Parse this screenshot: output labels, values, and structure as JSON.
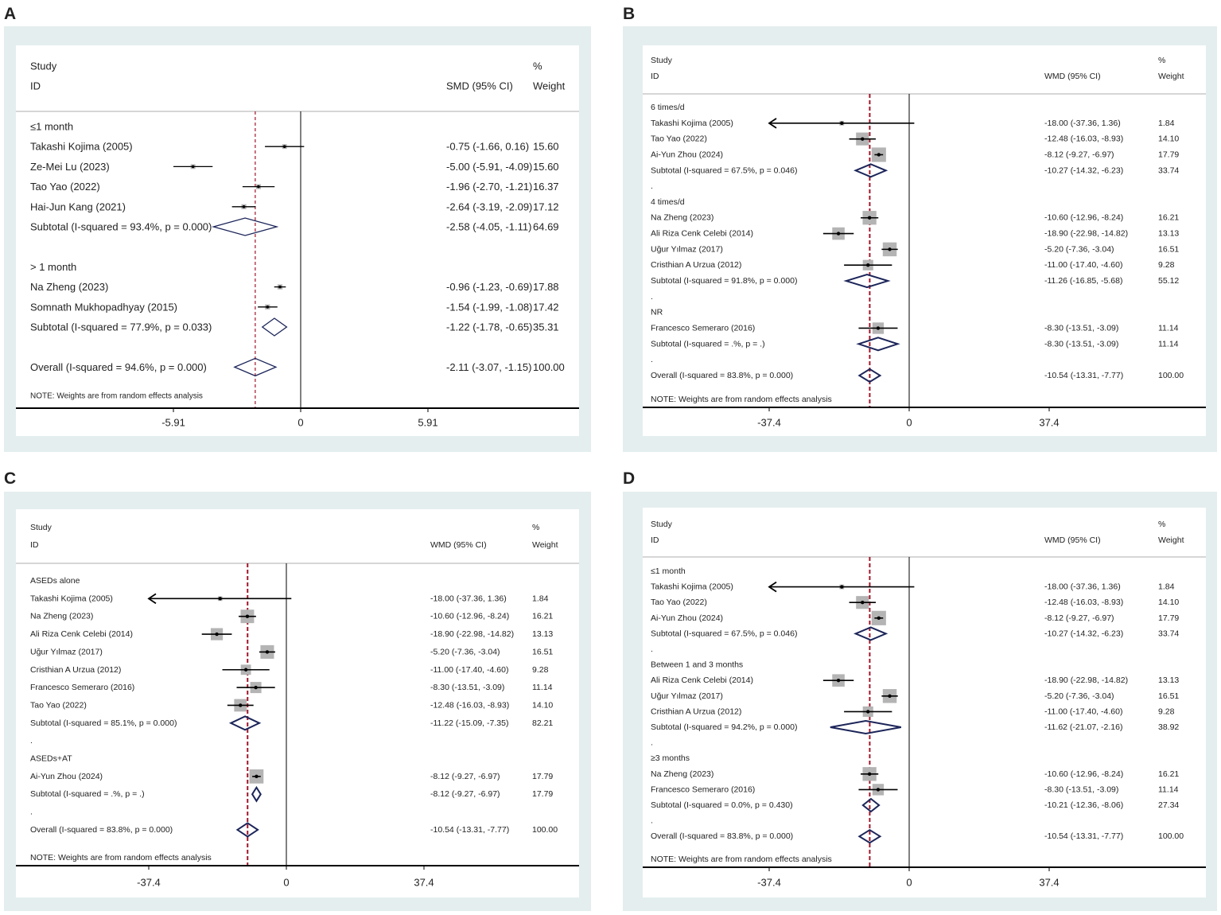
{
  "chart_data": [
    {
      "type": "forest",
      "panel_label": "A",
      "header": {
        "study": "Study",
        "id": "ID",
        "measure": "SMD (95% CI)",
        "pct": "%",
        "weight": "Weight"
      },
      "axis_ticks": [
        {
          "value": -5.91,
          "label": "-5.91"
        },
        {
          "value": 0,
          "label": "0"
        },
        {
          "value": 5.91,
          "label": "5.91"
        }
      ],
      "overall_estimate": -2.11,
      "note": "NOTE: Weights are from random effects analysis",
      "rows": [
        {
          "type": "group",
          "label": "≤1 month"
        },
        {
          "type": "study",
          "label": "Takashi Kojima (2005)",
          "est": -0.75,
          "lo": -1.66,
          "hi": 0.16,
          "ci_text": "-0.75 (-1.66, 0.16)",
          "weight": "15.60"
        },
        {
          "type": "study",
          "label": "Ze-Mei Lu (2023)",
          "est": -5.0,
          "lo": -5.91,
          "hi": -4.09,
          "ci_text": "-5.00 (-5.91, -4.09)",
          "weight": "15.60"
        },
        {
          "type": "study",
          "label": "Tao Yao (2022)",
          "est": -1.96,
          "lo": -2.7,
          "hi": -1.21,
          "ci_text": "-1.96 (-2.70, -1.21)",
          "weight": "16.37"
        },
        {
          "type": "study",
          "label": "Hai-Jun Kang (2021)",
          "est": -2.64,
          "lo": -3.19,
          "hi": -2.09,
          "ci_text": "-2.64 (-3.19, -2.09)",
          "weight": "17.12"
        },
        {
          "type": "subtotal",
          "label": "Subtotal  (I-squared = 93.4%, p = 0.000)",
          "est": -2.58,
          "lo": -4.05,
          "hi": -1.11,
          "ci_text": "-2.58 (-4.05, -1.11)",
          "weight": "64.69"
        },
        {
          "type": "blank",
          "label": ""
        },
        {
          "type": "group",
          "label": "> 1 month"
        },
        {
          "type": "study",
          "label": "Na Zheng (2023)",
          "est": -0.96,
          "lo": -1.23,
          "hi": -0.69,
          "ci_text": "-0.96 (-1.23, -0.69)",
          "weight": "17.88"
        },
        {
          "type": "study",
          "label": "Somnath Mukhopadhyay (2015)",
          "est": -1.54,
          "lo": -1.99,
          "hi": -1.08,
          "ci_text": "-1.54 (-1.99, -1.08)",
          "weight": "17.42"
        },
        {
          "type": "subtotal",
          "label": "Subtotal  (I-squared = 77.9%, p = 0.033)",
          "est": -1.22,
          "lo": -1.78,
          "hi": -0.65,
          "ci_text": "-1.22 (-1.78, -0.65)",
          "weight": "35.31"
        },
        {
          "type": "blank",
          "label": ""
        },
        {
          "type": "overall",
          "label": "Overall  (I-squared = 94.6%, p = 0.000)",
          "est": -2.11,
          "lo": -3.07,
          "hi": -1.15,
          "ci_text": "-2.11 (-3.07, -1.15)",
          "weight": "100.00"
        }
      ]
    },
    {
      "type": "forest",
      "panel_label": "B",
      "header": {
        "study": "Study",
        "id": "ID",
        "measure": "WMD (95% CI)",
        "pct": "%",
        "weight": "Weight"
      },
      "axis_ticks": [
        {
          "value": -37.4,
          "label": "-37.4"
        },
        {
          "value": 0,
          "label": "0"
        },
        {
          "value": 37.4,
          "label": "37.4"
        }
      ],
      "overall_estimate": -10.54,
      "note": "NOTE: Weights are from random effects analysis",
      "rows": [
        {
          "type": "group",
          "label": "6 times/d"
        },
        {
          "type": "study",
          "label": "Takashi Kojima (2005)",
          "est": -18.0,
          "lo": -37.36,
          "hi": 1.36,
          "ci_text": "-18.00 (-37.36, 1.36)",
          "weight": "1.84"
        },
        {
          "type": "study",
          "label": "Tao Yao (2022)",
          "est": -12.48,
          "lo": -16.03,
          "hi": -8.93,
          "ci_text": "-12.48 (-16.03, -8.93)",
          "weight": "14.10"
        },
        {
          "type": "study",
          "label": "Ai-Yun Zhou (2024)",
          "est": -8.12,
          "lo": -9.27,
          "hi": -6.97,
          "ci_text": "-8.12 (-9.27, -6.97)",
          "weight": "17.79"
        },
        {
          "type": "subtotal",
          "label": "Subtotal  (I-squared = 67.5%, p = 0.046)",
          "est": -10.27,
          "lo": -14.32,
          "hi": -6.23,
          "ci_text": "-10.27 (-14.32, -6.23)",
          "weight": "33.74"
        },
        {
          "type": "blank",
          "label": "."
        },
        {
          "type": "group",
          "label": "4 times/d"
        },
        {
          "type": "study",
          "label": "Na Zheng (2023)",
          "est": -10.6,
          "lo": -12.96,
          "hi": -8.24,
          "ci_text": "-10.60 (-12.96, -8.24)",
          "weight": "16.21"
        },
        {
          "type": "study",
          "label": "Ali Riza Cenk Celebi (2014)",
          "est": -18.9,
          "lo": -22.98,
          "hi": -14.82,
          "ci_text": "-18.90 (-22.98, -14.82)",
          "weight": "13.13"
        },
        {
          "type": "study",
          "label": "Uğur Yılmaz (2017)",
          "est": -5.2,
          "lo": -7.36,
          "hi": -3.04,
          "ci_text": "-5.20 (-7.36, -3.04)",
          "weight": "16.51"
        },
        {
          "type": "study",
          "label": "Cristhian A Urzua (2012)",
          "est": -11.0,
          "lo": -17.4,
          "hi": -4.6,
          "ci_text": "-11.00 (-17.40, -4.60)",
          "weight": "9.28"
        },
        {
          "type": "subtotal",
          "label": "Subtotal  (I-squared = 91.8%, p = 0.000)",
          "est": -11.26,
          "lo": -16.85,
          "hi": -5.68,
          "ci_text": "-11.26 (-16.85, -5.68)",
          "weight": "55.12"
        },
        {
          "type": "blank",
          "label": "."
        },
        {
          "type": "group",
          "label": "NR"
        },
        {
          "type": "study",
          "label": "Francesco Semeraro (2016)",
          "est": -8.3,
          "lo": -13.51,
          "hi": -3.09,
          "ci_text": "-8.30 (-13.51, -3.09)",
          "weight": "11.14"
        },
        {
          "type": "subtotal",
          "label": "Subtotal  (I-squared = .%, p = .)",
          "est": -8.3,
          "lo": -13.51,
          "hi": -3.09,
          "ci_text": "-8.30 (-13.51, -3.09)",
          "weight": "11.14"
        },
        {
          "type": "blank",
          "label": "."
        },
        {
          "type": "overall",
          "label": "Overall  (I-squared = 83.8%, p = 0.000)",
          "est": -10.54,
          "lo": -13.31,
          "hi": -7.77,
          "ci_text": "-10.54 (-13.31, -7.77)",
          "weight": "100.00"
        }
      ]
    },
    {
      "type": "forest",
      "panel_label": "C",
      "header": {
        "study": "Study",
        "id": "ID",
        "measure": "WMD (95% CI)",
        "pct": "%",
        "weight": "Weight"
      },
      "axis_ticks": [
        {
          "value": -37.4,
          "label": "-37.4"
        },
        {
          "value": 0,
          "label": "0"
        },
        {
          "value": 37.4,
          "label": "37.4"
        }
      ],
      "overall_estimate": -10.54,
      "note": "NOTE: Weights are from random effects analysis",
      "rows": [
        {
          "type": "group",
          "label": "ASEDs alone"
        },
        {
          "type": "study",
          "label": "Takashi Kojima (2005)",
          "est": -18.0,
          "lo": -37.36,
          "hi": 1.36,
          "ci_text": "-18.00 (-37.36, 1.36)",
          "weight": "1.84"
        },
        {
          "type": "study",
          "label": "Na Zheng (2023)",
          "est": -10.6,
          "lo": -12.96,
          "hi": -8.24,
          "ci_text": "-10.60 (-12.96, -8.24)",
          "weight": "16.21"
        },
        {
          "type": "study",
          "label": "Ali Riza Cenk Celebi (2014)",
          "est": -18.9,
          "lo": -22.98,
          "hi": -14.82,
          "ci_text": "-18.90 (-22.98, -14.82)",
          "weight": "13.13"
        },
        {
          "type": "study",
          "label": "Uğur Yılmaz (2017)",
          "est": -5.2,
          "lo": -7.36,
          "hi": -3.04,
          "ci_text": "-5.20 (-7.36, -3.04)",
          "weight": "16.51"
        },
        {
          "type": "study",
          "label": "Cristhian A Urzua (2012)",
          "est": -11.0,
          "lo": -17.4,
          "hi": -4.6,
          "ci_text": "-11.00 (-17.40, -4.60)",
          "weight": "9.28"
        },
        {
          "type": "study",
          "label": "Francesco Semeraro (2016)",
          "est": -8.3,
          "lo": -13.51,
          "hi": -3.09,
          "ci_text": "-8.30 (-13.51, -3.09)",
          "weight": "11.14"
        },
        {
          "type": "study",
          "label": "Tao Yao (2022)",
          "est": -12.48,
          "lo": -16.03,
          "hi": -8.93,
          "ci_text": "-12.48 (-16.03, -8.93)",
          "weight": "14.10"
        },
        {
          "type": "subtotal",
          "label": "Subtotal  (I-squared = 85.1%, p = 0.000)",
          "est": -11.22,
          "lo": -15.09,
          "hi": -7.35,
          "ci_text": "-11.22 (-15.09, -7.35)",
          "weight": "82.21"
        },
        {
          "type": "blank",
          "label": "."
        },
        {
          "type": "group",
          "label": "ASEDs+AT"
        },
        {
          "type": "study",
          "label": "Ai-Yun Zhou (2024)",
          "est": -8.12,
          "lo": -9.27,
          "hi": -6.97,
          "ci_text": "-8.12 (-9.27, -6.97)",
          "weight": "17.79"
        },
        {
          "type": "subtotal",
          "label": "Subtotal  (I-squared = .%, p = .)",
          "est": -8.12,
          "lo": -9.27,
          "hi": -6.97,
          "ci_text": "-8.12 (-9.27, -6.97)",
          "weight": "17.79"
        },
        {
          "type": "blank",
          "label": "."
        },
        {
          "type": "overall",
          "label": "Overall  (I-squared = 83.8%, p = 0.000)",
          "est": -10.54,
          "lo": -13.31,
          "hi": -7.77,
          "ci_text": "-10.54 (-13.31, -7.77)",
          "weight": "100.00"
        }
      ]
    },
    {
      "type": "forest",
      "panel_label": "D",
      "header": {
        "study": "Study",
        "id": "ID",
        "measure": "WMD (95% CI)",
        "pct": "%",
        "weight": "Weight"
      },
      "axis_ticks": [
        {
          "value": -37.4,
          "label": "-37.4"
        },
        {
          "value": 0,
          "label": "0"
        },
        {
          "value": 37.4,
          "label": "37.4"
        }
      ],
      "overall_estimate": -10.54,
      "note": "NOTE: Weights are from random effects analysis",
      "rows": [
        {
          "type": "group",
          "label": "≤1 month"
        },
        {
          "type": "study",
          "label": "Takashi Kojima (2005)",
          "est": -18.0,
          "lo": -37.36,
          "hi": 1.36,
          "ci_text": "-18.00 (-37.36, 1.36)",
          "weight": "1.84"
        },
        {
          "type": "study",
          "label": "Tao Yao (2022)",
          "est": -12.48,
          "lo": -16.03,
          "hi": -8.93,
          "ci_text": "-12.48 (-16.03, -8.93)",
          "weight": "14.10"
        },
        {
          "type": "study",
          "label": "Ai-Yun Zhou (2024)",
          "est": -8.12,
          "lo": -9.27,
          "hi": -6.97,
          "ci_text": "-8.12 (-9.27, -6.97)",
          "weight": "17.79"
        },
        {
          "type": "subtotal",
          "label": "Subtotal  (I-squared = 67.5%, p = 0.046)",
          "est": -10.27,
          "lo": -14.32,
          "hi": -6.23,
          "ci_text": "-10.27 (-14.32, -6.23)",
          "weight": "33.74"
        },
        {
          "type": "blank",
          "label": "."
        },
        {
          "type": "group",
          "label": "Between 1 and 3 months"
        },
        {
          "type": "study",
          "label": "Ali Riza Cenk Celebi (2014)",
          "est": -18.9,
          "lo": -22.98,
          "hi": -14.82,
          "ci_text": "-18.90 (-22.98, -14.82)",
          "weight": "13.13"
        },
        {
          "type": "study",
          "label": "Uğur Yılmaz (2017)",
          "est": -5.2,
          "lo": -7.36,
          "hi": -3.04,
          "ci_text": "-5.20 (-7.36, -3.04)",
          "weight": "16.51"
        },
        {
          "type": "study",
          "label": "Cristhian A Urzua (2012)",
          "est": -11.0,
          "lo": -17.4,
          "hi": -4.6,
          "ci_text": "-11.00 (-17.40, -4.60)",
          "weight": "9.28"
        },
        {
          "type": "subtotal",
          "label": "Subtotal  (I-squared = 94.2%, p = 0.000)",
          "est": -11.62,
          "lo": -21.07,
          "hi": -2.16,
          "ci_text": "-11.62 (-21.07, -2.16)",
          "weight": "38.92"
        },
        {
          "type": "blank",
          "label": "."
        },
        {
          "type": "group",
          "label": "≥3 months"
        },
        {
          "type": "study",
          "label": "Na Zheng (2023)",
          "est": -10.6,
          "lo": -12.96,
          "hi": -8.24,
          "ci_text": "-10.60 (-12.96, -8.24)",
          "weight": "16.21"
        },
        {
          "type": "study",
          "label": "Francesco Semeraro (2016)",
          "est": -8.3,
          "lo": -13.51,
          "hi": -3.09,
          "ci_text": "-8.30 (-13.51, -3.09)",
          "weight": "11.14"
        },
        {
          "type": "subtotal",
          "label": "Subtotal  (I-squared = 0.0%, p = 0.430)",
          "est": -10.21,
          "lo": -12.36,
          "hi": -8.06,
          "ci_text": "-10.21 (-12.36, -8.06)",
          "weight": "27.34"
        },
        {
          "type": "blank",
          "label": "."
        },
        {
          "type": "overall",
          "label": "Overall  (I-squared = 83.8%, p = 0.000)",
          "est": -10.54,
          "lo": -13.31,
          "hi": -7.77,
          "ci_text": "-10.54 (-13.31, -7.77)",
          "weight": "100.00"
        }
      ]
    }
  ],
  "colors": {
    "panel_bg": "#e4eeee",
    "plot_bg": "#ffffff",
    "null_line": "#000000",
    "overall_line": "#a0162a",
    "diamond": "#1c2559",
    "square": "#b4b4b4"
  }
}
